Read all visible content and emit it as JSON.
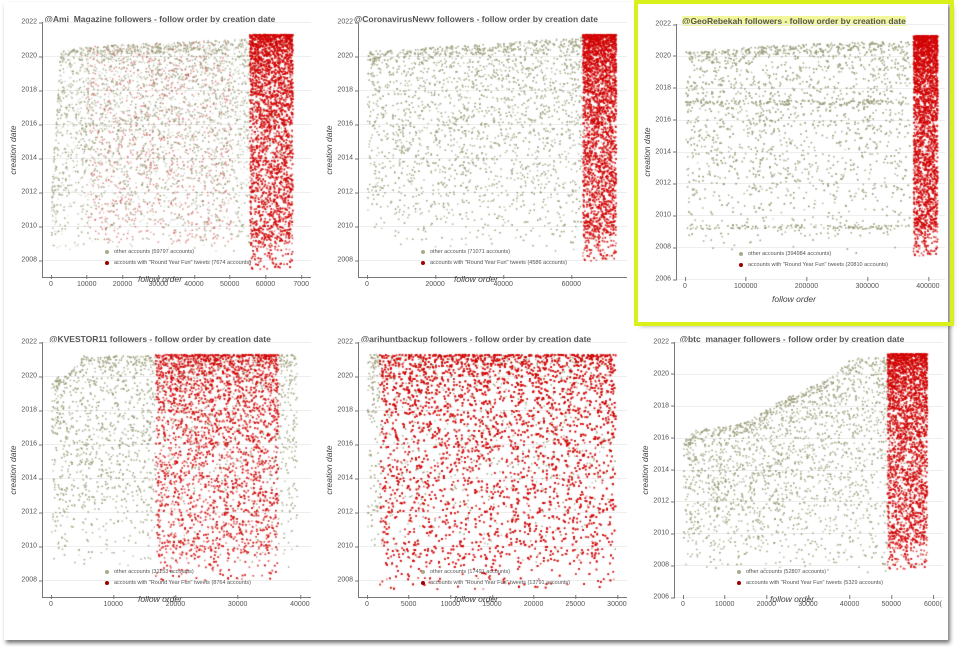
{
  "figure": {
    "highlighted_panel": "GeoRebekah",
    "colors": {
      "other": "#a9aa8c",
      "rounds": "#d40000",
      "highlight": "#d9f01a"
    }
  },
  "panels": [
    {
      "id": "ami",
      "title": "@Ami_Magazine followers - follow order by creation date",
      "xlabel": "follow order",
      "ylabel": "creation date",
      "yticks": [
        "2022",
        "2020",
        "2018",
        "2016",
        "2014",
        "2012",
        "2010",
        "2008"
      ],
      "xticks": [
        "0",
        "10000",
        "20000",
        "30000",
        "40000",
        "50000",
        "60000",
        "7000"
      ],
      "legend_other": "other accounts (59797 accounts)",
      "legend_rounds": "accounts with \"Round Year Fun\" tweets (7674 accounts)"
    },
    {
      "id": "coronavirus",
      "title": "@CoronavirusNewv followers - follow order by creation date",
      "xlabel": "follow order",
      "ylabel": "creation date",
      "yticks": [
        "2022",
        "2020",
        "2018",
        "2016",
        "2014",
        "2012",
        "2010",
        "2008"
      ],
      "xticks": [
        "0",
        "20000",
        "40000",
        "60000"
      ],
      "legend_other": "other accounts (71071 accounts)",
      "legend_rounds": "accounts with \"Round Year Fun\" tweets (4586 accounts)"
    },
    {
      "id": "georebekah",
      "title": "@GeoRebekah followers - follow order by creation date",
      "xlabel": "follow order",
      "ylabel": "creation date",
      "yticks": [
        "2022",
        "2020",
        "2018",
        "2016",
        "2014",
        "2012",
        "2010",
        "2008",
        "2006"
      ],
      "xticks": [
        "0",
        "100000",
        "200000",
        "300000",
        "400000"
      ],
      "legend_other": "other accounts (394984 accounts)",
      "legend_rounds": "accounts with \"Round Year Fun\" tweets (20810 accounts)"
    },
    {
      "id": "kvestor",
      "title": "@KVESTOR11 followers - follow order by creation date",
      "xlabel": "follow order",
      "ylabel": "creation date",
      "yticks": [
        "2022",
        "2020",
        "2018",
        "2016",
        "2014",
        "2012",
        "2010",
        "2008"
      ],
      "xticks": [
        "0",
        "10000",
        "20000",
        "30000",
        "40000"
      ],
      "legend_other": "other accounts (31153 accounts)",
      "legend_rounds": "accounts with \"Round Year Fun\" tweets (8764 accounts)"
    },
    {
      "id": "arihunt",
      "title": "@arihuntbackup followers - follow order by creation date",
      "xlabel": "follow order",
      "ylabel": "creation date",
      "yticks": [
        "2022",
        "2020",
        "2018",
        "2016",
        "2014",
        "2012",
        "2010",
        "2008"
      ],
      "xticks": [
        "0",
        "5000",
        "10000",
        "15000",
        "20000",
        "25000",
        "30000"
      ],
      "legend_other": "other accounts (17491 accounts)",
      "legend_rounds": "accounts with \"Round Year Fun\" tweets (13791 accounts)"
    },
    {
      "id": "btc",
      "title": "@btc_manager followers - follow order by creation date",
      "xlabel": "follow order",
      "ylabel": "creation date",
      "yticks": [
        "2022",
        "2020",
        "2018",
        "2016",
        "2014",
        "2012",
        "2010",
        "2008",
        "2006"
      ],
      "xticks": [
        "0",
        "10000",
        "20000",
        "30000",
        "40000",
        "50000",
        "6000("
      ],
      "legend_other": "other accounts (52807 accounts)",
      "legend_rounds": "accounts with \"Round Year Fun\" tweets (5329 accounts)"
    }
  ],
  "chart_data": [
    {
      "type": "scatter",
      "title": "@Ami_Magazine followers - follow order by creation date",
      "xlabel": "follow order",
      "ylabel": "creation date",
      "xlim": [
        0,
        70000
      ],
      "ylim": [
        2007,
        2022
      ],
      "series": [
        {
          "name": "other accounts",
          "count": 59797,
          "color": "#a9aa8c"
        },
        {
          "name": "accounts with \"Round Year Fun\" tweets",
          "count": 7674,
          "color": "#d40000",
          "dense_x_range": [
            55000,
            67000
          ],
          "y_range": [
            2009,
            2021.3
          ]
        }
      ],
      "upper_envelope": [
        [
          0,
          2012
        ],
        [
          1500,
          2017
        ],
        [
          2500,
          2020.3
        ],
        [
          10000,
          2020.6
        ],
        [
          50000,
          2021
        ],
        [
          67000,
          2021.3
        ]
      ],
      "grid": true,
      "legend_position": "bottom-center"
    },
    {
      "type": "scatter",
      "title": "@CoronavirusNewv followers - follow order by creation date",
      "xlabel": "follow order",
      "ylabel": "creation date",
      "xlim": [
        0,
        75000
      ],
      "ylim": [
        2007,
        2022
      ],
      "series": [
        {
          "name": "other accounts",
          "count": 71071,
          "color": "#a9aa8c"
        },
        {
          "name": "accounts with \"Round Year Fun\" tweets",
          "count": 4586,
          "color": "#d40000",
          "dense_x_range": [
            64000,
            74000
          ],
          "y_range": [
            2009.5,
            2021.3
          ]
        }
      ],
      "upper_envelope": [
        [
          0,
          2020.3
        ],
        [
          40000,
          2020.8
        ],
        [
          74000,
          2021.3
        ]
      ],
      "grid": true,
      "legend_position": "bottom-center"
    },
    {
      "type": "scatter",
      "title": "@GeoRebekah followers - follow order by creation date",
      "xlabel": "follow order",
      "ylabel": "creation date",
      "xlim": [
        0,
        415000
      ],
      "ylim": [
        2006,
        2022
      ],
      "series": [
        {
          "name": "other accounts",
          "count": 394984,
          "color": "#a9aa8c"
        },
        {
          "name": "accounts with \"Round Year Fun\" tweets",
          "count": 20810,
          "color": "#d40000",
          "dense_x_range": [
            375000,
            415000
          ],
          "y_range": [
            2009,
            2021.3
          ]
        }
      ],
      "bands_other": [
        2009.3,
        2017.1
      ],
      "upper_envelope": [
        [
          0,
          2020.3
        ],
        [
          200000,
          2020.8
        ],
        [
          370000,
          2021
        ]
      ],
      "grid": true,
      "legend_position": "bottom-center",
      "highlighted": true
    },
    {
      "type": "scatter",
      "title": "@KVESTOR11 followers - follow order by creation date",
      "xlabel": "follow order",
      "ylabel": "creation date",
      "xlim": [
        0,
        40000
      ],
      "ylim": [
        2007,
        2022
      ],
      "series": [
        {
          "name": "other accounts",
          "count": 31153,
          "color": "#a9aa8c"
        },
        {
          "name": "accounts with \"Round Year Fun\" tweets",
          "count": 8764,
          "color": "#d40000",
          "dense_x_range": [
            16500,
            36000
          ],
          "y_range": [
            2009.5,
            2021.3
          ]
        }
      ],
      "upper_envelope": [
        [
          0,
          2019.8
        ],
        [
          3000,
          2020.3
        ],
        [
          5000,
          2021.2
        ],
        [
          39000,
          2021.3
        ]
      ],
      "grid": true,
      "legend_position": "bottom-center"
    },
    {
      "type": "scatter",
      "title": "@arihuntbackup followers - follow order by creation date",
      "xlabel": "follow order",
      "ylabel": "creation date",
      "xlim": [
        0,
        31000
      ],
      "ylim": [
        2007,
        2022
      ],
      "series": [
        {
          "name": "other accounts",
          "count": 17491,
          "color": "#a9aa8c"
        },
        {
          "name": "accounts with \"Round Year Fun\" tweets",
          "count": 13791,
          "color": "#d40000",
          "dense_x_range": [
            1500,
            30500
          ],
          "y_range": [
            2009,
            2021.3
          ]
        }
      ],
      "upper_envelope": [
        [
          0,
          2021.3
        ],
        [
          30500,
          2021.3
        ]
      ],
      "grid": true,
      "legend_position": "bottom-center"
    },
    {
      "type": "scatter",
      "title": "@btc_manager followers - follow order by creation date",
      "xlabel": "follow order",
      "ylabel": "creation date",
      "xlim": [
        0,
        60000
      ],
      "ylim": [
        2006,
        2022
      ],
      "series": [
        {
          "name": "other accounts",
          "count": 52807,
          "color": "#a9aa8c"
        },
        {
          "name": "accounts with \"Round Year Fun\" tweets",
          "count": 5329,
          "color": "#d40000",
          "dense_x_range": [
            48500,
            58000
          ],
          "y_range": [
            2009.3,
            2021.3
          ]
        }
      ],
      "upper_envelope": [
        [
          0,
          2015.8
        ],
        [
          3000,
          2016.5
        ],
        [
          15000,
          2017
        ],
        [
          24000,
          2018.5
        ],
        [
          35000,
          2019.8
        ],
        [
          40000,
          2021
        ],
        [
          58000,
          2021.3
        ]
      ],
      "grid": true,
      "legend_position": "bottom-center"
    }
  ]
}
